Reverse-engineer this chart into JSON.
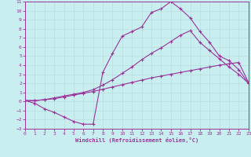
{
  "xlabel": "Windchill (Refroidissement éolien,°C)",
  "bg_color": "#c8eef0",
  "grid_color": "#b8dede",
  "line_color": "#993399",
  "xlim": [
    0,
    23
  ],
  "ylim": [
    -3,
    11
  ],
  "xticks": [
    0,
    1,
    2,
    3,
    4,
    5,
    6,
    7,
    8,
    9,
    10,
    11,
    12,
    13,
    14,
    15,
    16,
    17,
    18,
    19,
    20,
    21,
    22,
    23
  ],
  "yticks": [
    -3,
    -2,
    -1,
    0,
    1,
    2,
    3,
    4,
    5,
    6,
    7,
    8,
    9,
    10,
    11
  ],
  "line1_x": [
    0,
    1,
    2,
    3,
    4,
    5,
    6,
    7,
    8,
    9,
    10,
    11,
    12,
    13,
    14,
    15,
    16,
    17,
    18,
    19,
    20,
    21,
    22,
    23
  ],
  "line1_y": [
    0.1,
    0.1,
    0.2,
    0.3,
    0.5,
    0.7,
    0.9,
    1.1,
    1.35,
    1.6,
    1.85,
    2.1,
    2.35,
    2.6,
    2.8,
    3.0,
    3.2,
    3.4,
    3.6,
    3.8,
    4.0,
    4.15,
    4.3,
    2.1
  ],
  "line2_x": [
    0,
    1,
    2,
    3,
    4,
    5,
    6,
    7,
    8,
    9,
    10,
    11,
    12,
    13,
    14,
    15,
    16,
    17,
    18,
    19,
    20,
    21,
    22,
    23
  ],
  "line2_y": [
    0.1,
    -0.2,
    -0.8,
    -1.2,
    -1.7,
    -2.2,
    -2.5,
    -2.5,
    3.2,
    5.3,
    7.2,
    7.7,
    8.2,
    9.8,
    10.2,
    11.0,
    10.2,
    9.2,
    7.7,
    6.5,
    5.0,
    4.5,
    3.5,
    2.0
  ],
  "line3_x": [
    0,
    1,
    2,
    3,
    4,
    5,
    6,
    7,
    8,
    9,
    10,
    11,
    12,
    13,
    14,
    15,
    16,
    17,
    18,
    19,
    20,
    21,
    22,
    23
  ],
  "line3_y": [
    0.1,
    0.1,
    0.2,
    0.4,
    0.6,
    0.8,
    1.0,
    1.3,
    1.8,
    2.4,
    3.1,
    3.8,
    4.6,
    5.3,
    5.9,
    6.6,
    7.3,
    7.8,
    6.5,
    5.6,
    4.7,
    3.8,
    3.0,
    2.0
  ]
}
